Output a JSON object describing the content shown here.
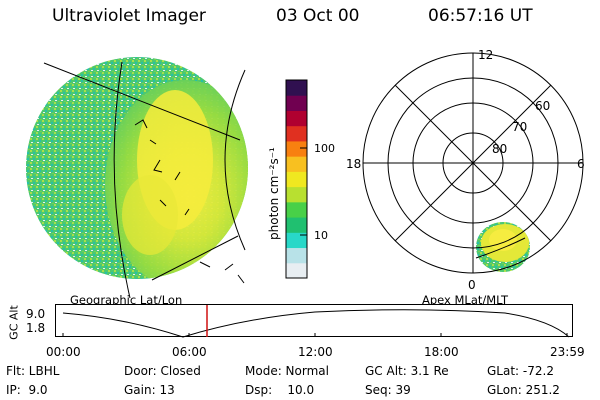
{
  "header": {
    "title": "Ultraviolet Imager",
    "date": "03 Oct 00",
    "time": "06:57:16 UT"
  },
  "colorbar": {
    "label": "photon cm⁻²s⁻¹",
    "tick_100": "100",
    "tick_10": "10",
    "colors": [
      "#e8eef2",
      "#b8e2e8",
      "#28d8c8",
      "#20c070",
      "#48d048",
      "#b8e030",
      "#f0e820",
      "#f8c020",
      "#f88010",
      "#e03020",
      "#b00030",
      "#700050",
      "#301050"
    ]
  },
  "polar": {
    "label_12": "12",
    "label_18": "18",
    "label_6": "6",
    "label_0": "0",
    "label_60": "60",
    "label_70": "70",
    "label_80": "80"
  },
  "captions": {
    "left": "Geographic Lat/Lon",
    "right": "Apex MLat/MLT"
  },
  "altitude_plot": {
    "axis_label": "GC Alt",
    "y_top": "9.0",
    "y_bottom": "1.8",
    "x_ticks": [
      "00:00",
      "06:00",
      "12:00",
      "18:00",
      "23:59"
    ],
    "marker_color": "#d01010"
  },
  "info": {
    "flt": "Flt: LBHL",
    "door": "Door: Closed",
    "mode": "Mode: Normal",
    "gc_alt": "GC Alt: 3.1 Re",
    "glat": "GLat: -72.2",
    "ip": "IP:  9.0",
    "gain": "Gain: 13",
    "dsp": "Dsp:    10.0",
    "seq": "Seq: 39",
    "glon": "GLon: 251.2"
  }
}
